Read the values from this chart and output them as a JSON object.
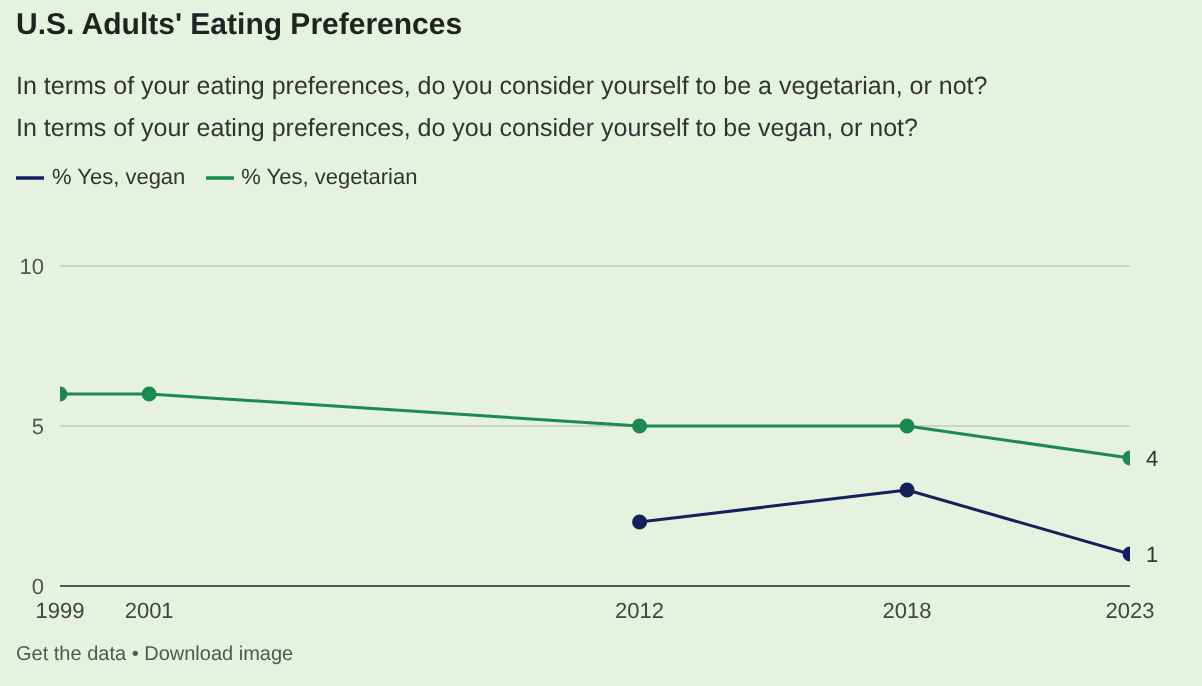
{
  "chart_data": {
    "type": "line",
    "title": "U.S. Adults' Eating Preferences",
    "subtitle": "In terms of your eating preferences, do you consider yourself to be a vegetarian, or not?\nIn terms of your eating preferences, do you consider yourself to be vegan, or not?",
    "x": [
      1999,
      2001,
      2012,
      2018,
      2023
    ],
    "series": [
      {
        "name": "% Yes, vegetarian",
        "color": "#1b8a4c",
        "values": [
          6,
          6,
          5,
          5,
          4
        ],
        "value_labels": [
          null,
          null,
          null,
          null,
          "4"
        ]
      },
      {
        "name": "% Yes, vegan",
        "color": "#14205c",
        "x": [
          2012,
          2018,
          2023
        ],
        "values": [
          2,
          3,
          1
        ],
        "value_labels": [
          null,
          null,
          "1"
        ]
      }
    ],
    "xlim": [
      1999,
      2023
    ],
    "xticks": [
      1999,
      2001,
      2012,
      2018,
      2023
    ],
    "ylim": [
      0,
      10
    ],
    "yticks": [
      0,
      5,
      10
    ],
    "grid": "y",
    "legend": "top left",
    "marker": "circle",
    "line_style": "solid",
    "annotations": [
      "Get the data • Download image"
    ]
  }
}
